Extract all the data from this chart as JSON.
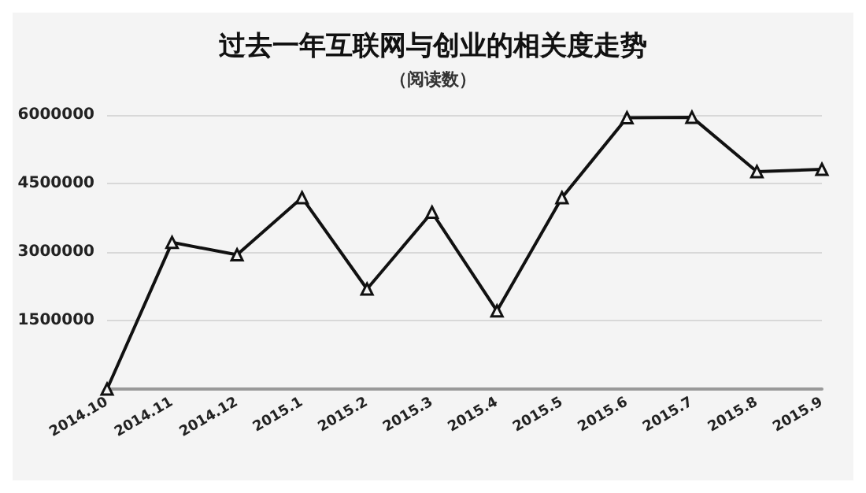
{
  "chart_data": {
    "type": "line",
    "title": "过去一年互联网与创业的相关度走势",
    "subtitle": "（阅读数）",
    "categories": [
      "2014.10",
      "2014.11",
      "2014.12",
      "2015.1",
      "2015.2",
      "2015.3",
      "2015.4",
      "2015.5",
      "2015.6",
      "2015.7",
      "2015.8",
      "2015.9"
    ],
    "series": [
      {
        "color": "#111111",
        "values": [
          0,
          3210000,
          2940000,
          4190000,
          2190000,
          3870000,
          1710000,
          4190000,
          5940000,
          5950000,
          4760000,
          4810000
        ]
      }
    ],
    "ylim": [
      0,
      6000000
    ],
    "yticks": [
      {
        "value": 0,
        "label": null
      },
      1500000,
      3000000,
      4500000,
      6000000
    ],
    "grid": "y",
    "marker": "triangle",
    "line_style": "solid"
  }
}
